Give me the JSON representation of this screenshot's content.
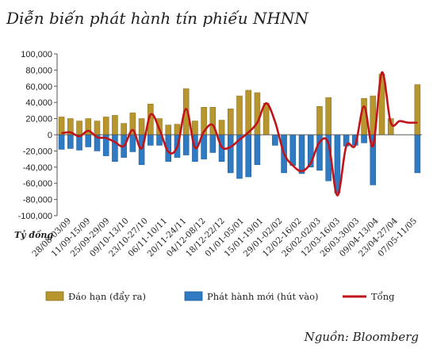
{
  "chart_data": {
    "type": "bar",
    "title": "Diễn biến phát hành tín phiếu NHNN",
    "ylabel": "Tỷ đồng",
    "source": "Nguồn: Bloomberg",
    "ylim": [
      -100000,
      100000
    ],
    "yticks": [
      "100,000",
      "80,000",
      "60,000",
      "40,000",
      "20,000",
      "0",
      "-20,000",
      "-40,000",
      "-60,000",
      "-80,000",
      "-100,000"
    ],
    "ytick_values": [
      100000,
      80000,
      60000,
      40000,
      20000,
      0,
      -20000,
      -40000,
      -60000,
      -80000,
      -100000
    ],
    "x_tick_labels": [
      "28/08-03/09",
      "11/09-15/09",
      "25/09-29/09",
      "09/10-13/10",
      "23/10-27/10",
      "06/11-10/11",
      "20/11-24/11",
      "04/12-08/12",
      "18/12-22/12",
      "01/01-05/01",
      "15/01-19/01",
      "29/01-02/02",
      "12/02-16/02",
      "26/02-02/03",
      "12/03-16/03",
      "26/03-30/03",
      "09/04-13/04",
      "23/04-27/04",
      "07/05-11/05"
    ],
    "grid": false,
    "legend_position": "bottom",
    "colors": {
      "maturity": "#b8962e",
      "maturity_edge": "#8a6f1c",
      "issuance": "#2e7bc4",
      "issuance_edge": "#1f5e99",
      "total": "#c0141a",
      "axis": "#555555"
    },
    "series": [
      {
        "name": "Đáo hạn (đẩy ra)",
        "type": "bar",
        "values": [
          22000,
          20000,
          17000,
          20000,
          17000,
          22000,
          24000,
          14000,
          27000,
          20000,
          38000,
          20000,
          12000,
          13000,
          57000,
          17000,
          34000,
          34000,
          18000,
          32000,
          48000,
          55000,
          52000,
          39000,
          0,
          0,
          0,
          0,
          0,
          35000,
          46000,
          0,
          0,
          0,
          45000,
          48000,
          75000,
          20000,
          0,
          0,
          62000
        ]
      },
      {
        "name": "Phát hành mới (hút vào)",
        "type": "bar",
        "values": [
          -18000,
          -17000,
          -19000,
          -15000,
          -20000,
          -26000,
          -33000,
          -28000,
          -21000,
          -37000,
          -13000,
          -13000,
          -33000,
          -28000,
          -25000,
          -33000,
          -30000,
          -22000,
          -33000,
          -47000,
          -54000,
          -52000,
          -37000,
          0,
          -13000,
          -47000,
          -38000,
          -48000,
          -40000,
          -44000,
          -57000,
          -72000,
          -14000,
          -13000,
          -10000,
          -62000,
          0,
          0,
          0,
          0,
          -47000
        ]
      },
      {
        "name": "Tổng",
        "type": "line",
        "values": [
          2000,
          3000,
          -2000,
          5000,
          -3000,
          -4000,
          -9000,
          -14000,
          6000,
          -17000,
          25000,
          7000,
          -21000,
          -15000,
          32000,
          -16000,
          4000,
          12000,
          -15000,
          -15000,
          -6000,
          3000,
          15000,
          39000,
          16000,
          -23000,
          -38000,
          -45000,
          -35000,
          -9000,
          -11000,
          -75000,
          -14000,
          -13000,
          35000,
          -14000,
          77000,
          15000,
          17000,
          15000,
          15000
        ]
      }
    ]
  },
  "legend": {
    "maturity": "Đáo hạn (đẩy ra)",
    "issuance": "Phát hành mới (hút vào)",
    "total": "Tổng"
  }
}
